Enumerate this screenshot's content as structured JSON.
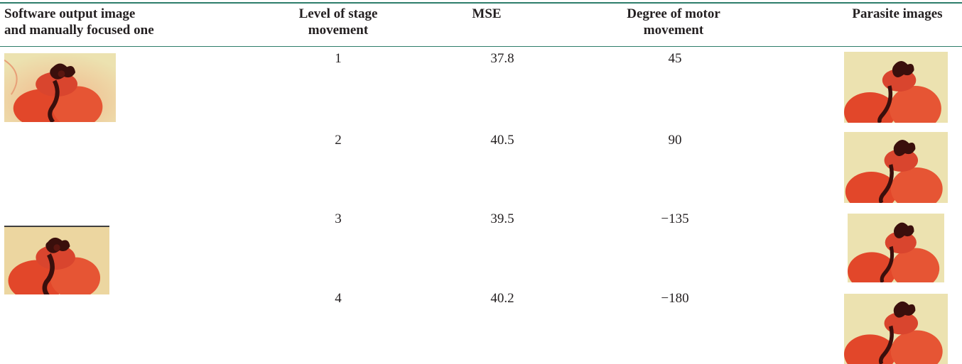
{
  "table": {
    "caption": "",
    "headers": {
      "software": [
        "Software output image",
        "and manually focused one"
      ],
      "level": [
        "Level of stage",
        "movement"
      ],
      "mse": [
        "MSE"
      ],
      "degree": [
        "Degree of motor",
        "movement"
      ],
      "parasite": [
        "Parasite images"
      ]
    },
    "rows": [
      {
        "level": "1",
        "mse": "37.8",
        "degree": "45"
      },
      {
        "level": "2",
        "mse": "40.5",
        "degree": "90"
      },
      {
        "level": "3",
        "mse": "39.5",
        "degree": "−135"
      },
      {
        "level": "4",
        "mse": "40.2",
        "degree": "−180"
      }
    ],
    "colors": {
      "rule": "#2e7d6b",
      "text": "#231f20",
      "image_background": "#ece2b0",
      "image_red": "#e2472a",
      "image_dark": "#3a0f0c"
    },
    "images": {
      "software": [
        "parasite-micrograph",
        "parasite-micrograph"
      ],
      "parasite": [
        "parasite-micrograph",
        "parasite-micrograph",
        "parasite-micrograph",
        "parasite-micrograph"
      ]
    }
  }
}
